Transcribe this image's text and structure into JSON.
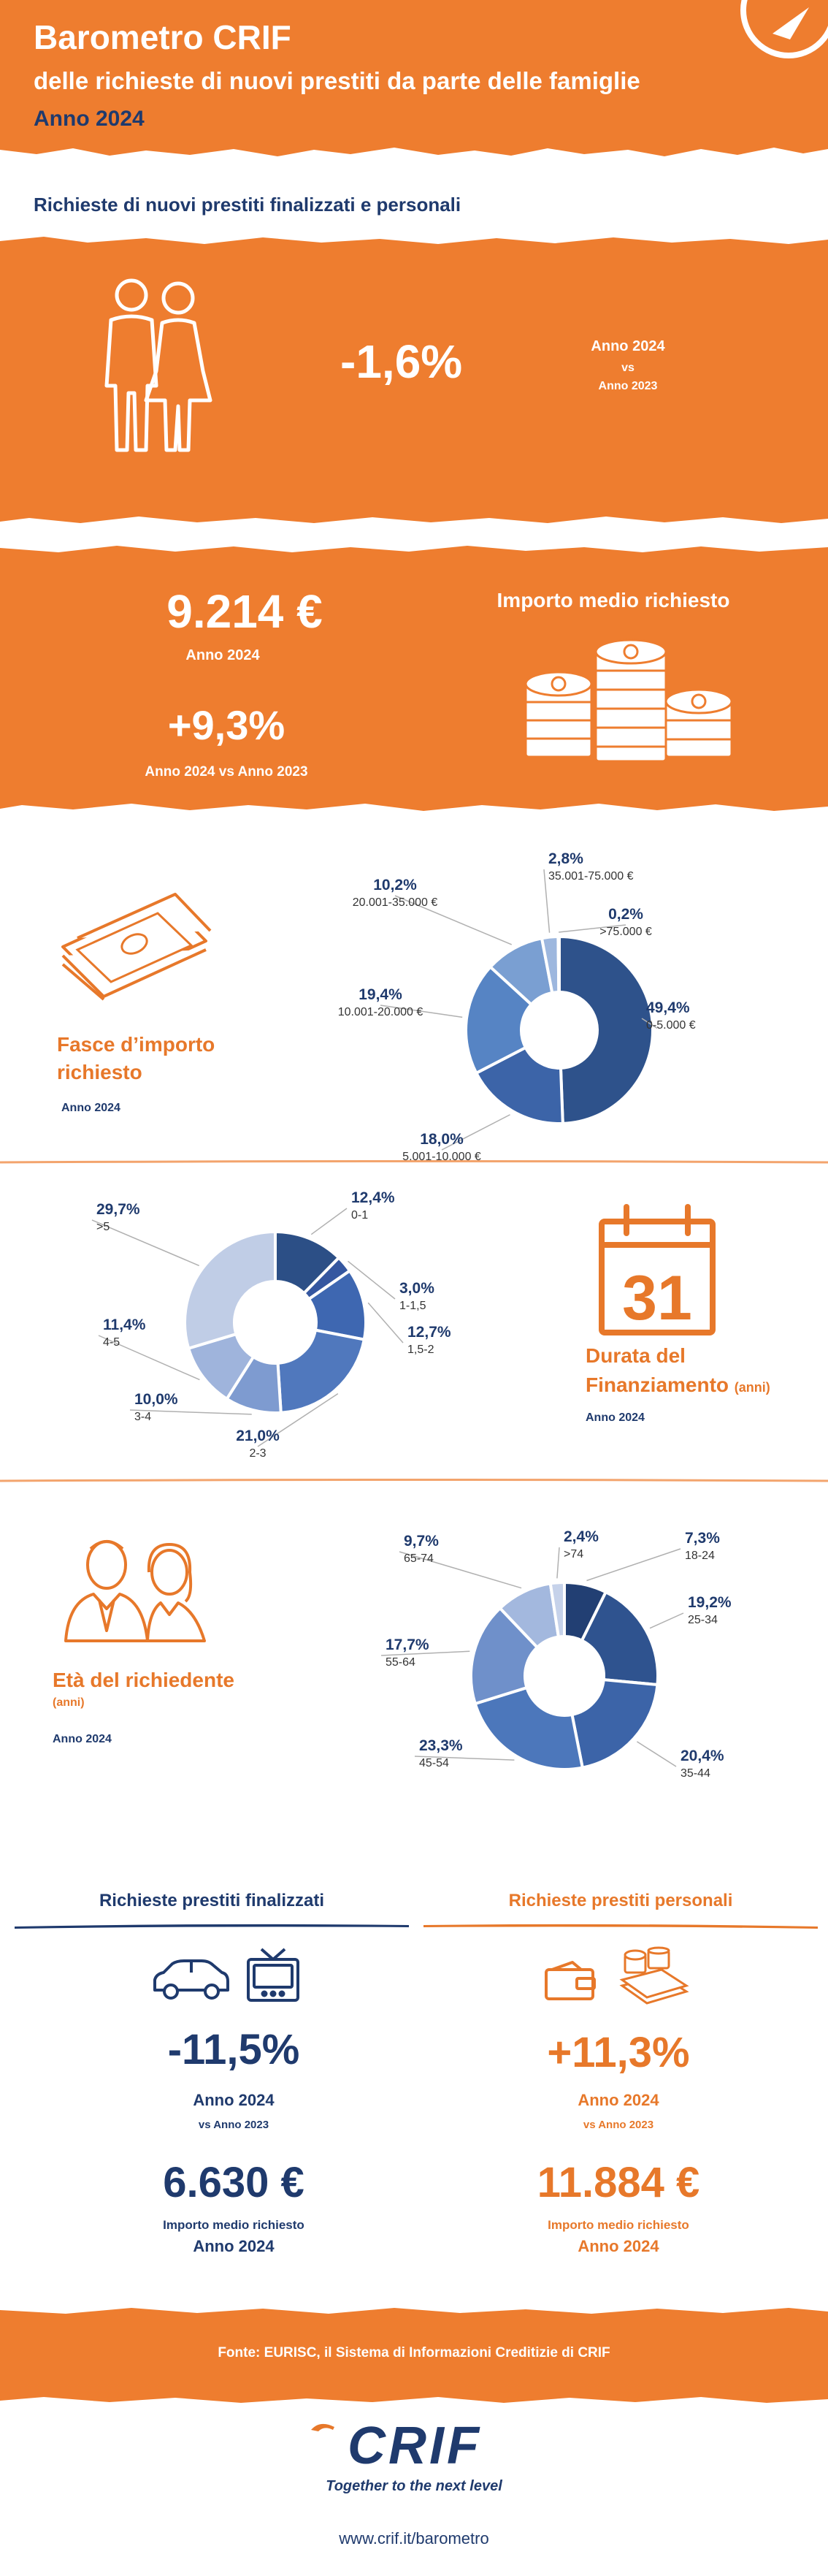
{
  "header": {
    "title": "Barometro CRIF",
    "subtitle": "delle richieste di nuovi prestiti da parte delle famiglie",
    "year": "Anno 2024"
  },
  "section1": {
    "heading": "Richieste di nuovi prestiti finalizzati e personali",
    "change": "-1,6%",
    "compare_a": "Anno 2024",
    "compare_vs": "vs",
    "compare_b": "Anno 2023"
  },
  "section2": {
    "amount": "9.214 €",
    "amount_year": "Anno 2024",
    "change": "+9,3%",
    "change_label": "Anno 2024 vs Anno 2023",
    "title": "Importo medio richiesto"
  },
  "importo": {
    "title_line1": "Fasce d’importo",
    "title_line2": "richiesto",
    "year": "Anno 2024"
  },
  "durata": {
    "title_line1": "Durata del",
    "title_line2": "Finanziamento",
    "unit": "(anni)",
    "year": "Anno 2024",
    "calendar_day": "31"
  },
  "eta": {
    "title": "Età del richiedente",
    "unit": "(anni)",
    "year": "Anno 2024"
  },
  "chart_data": [
    {
      "type": "pie",
      "donut": true,
      "title": "Fasce d’importo richiesto",
      "slices": [
        {
          "label": "0-5.000 €",
          "value": 49.4,
          "text": "49,4%",
          "color": "#2e528b"
        },
        {
          "label": "5.001-10.000 €",
          "value": 18.0,
          "text": "18,0%",
          "color": "#3c64a8"
        },
        {
          "label": "10.001-20.000 €",
          "value": 19.4,
          "text": "19,4%",
          "color": "#5684c4"
        },
        {
          "label": "20.001-35.000 €",
          "value": 10.2,
          "text": "10,2%",
          "color": "#7a9fd2"
        },
        {
          "label": "35.001-75.000 €",
          "value": 2.8,
          "text": "2,8%",
          "color": "#9db7de"
        },
        {
          "label": ">75.000 €",
          "value": 0.2,
          "text": "0,2%",
          "color": "#bccde9"
        }
      ]
    },
    {
      "type": "pie",
      "donut": true,
      "title": "Durata del Finanziamento (anni)",
      "slices": [
        {
          "label": "0-1",
          "value": 12.4,
          "text": "12,4%",
          "color": "#2c4f86"
        },
        {
          "label": "1-1,5",
          "value": 3.0,
          "text": "3,0%",
          "color": "#3557a0"
        },
        {
          "label": "1,5-2",
          "value": 12.7,
          "text": "12,7%",
          "color": "#3e67b1"
        },
        {
          "label": "2-3",
          "value": 21.0,
          "text": "21,0%",
          "color": "#5078bd"
        },
        {
          "label": "3-4",
          "value": 10.0,
          "text": "10,0%",
          "color": "#7e9bd0"
        },
        {
          "label": "4-5",
          "value": 11.4,
          "text": "11,4%",
          "color": "#9fb4dc"
        },
        {
          "label": ">5",
          "value": 29.7,
          "text": "29,7%",
          "color": "#c0cde6"
        }
      ]
    },
    {
      "type": "pie",
      "donut": true,
      "title": "Età del richiedente (anni)",
      "slices": [
        {
          "label": "18-24",
          "value": 7.3,
          "text": "7,3%",
          "color": "#223f73"
        },
        {
          "label": "25-34",
          "value": 19.2,
          "text": "19,2%",
          "color": "#2f538f"
        },
        {
          "label": "35-44",
          "value": 20.4,
          "text": "20,4%",
          "color": "#3c64a8"
        },
        {
          "label": "45-54",
          "value": 23.3,
          "text": "23,3%",
          "color": "#4c77bb"
        },
        {
          "label": "55-64",
          "value": 17.7,
          "text": "17,7%",
          "color": "#6f90ca"
        },
        {
          "label": "65-74",
          "value": 9.7,
          "text": "9,7%",
          "color": "#a3b8de"
        },
        {
          "label": ">74",
          "value": 2.4,
          "text": "2,4%",
          "color": "#c6d2ea"
        }
      ]
    }
  ],
  "finalizzati": {
    "heading": "Richieste prestiti finalizzati",
    "change": "-11,5%",
    "change_year": "Anno 2024",
    "change_vs": "vs Anno 2023",
    "amount": "6.630 €",
    "amount_label": "Importo medio richiesto",
    "amount_year": "Anno 2024",
    "color": "#1f3a6d"
  },
  "personali": {
    "heading": "Richieste prestiti personali",
    "change": "+11,3%",
    "change_year": "Anno 2024",
    "change_vs": "vs Anno 2023",
    "amount": "11.884 €",
    "amount_label": "Importo medio richiesto",
    "amount_year": "Anno 2024",
    "color": "#e7782a"
  },
  "footer": {
    "source": "Fonte: EURISC, il Sistema di Informazioni Creditizie di CRIF",
    "logo": "CRIF",
    "tagline": "Together to the next level",
    "url": "www.crif.it/barometro"
  },
  "icons": [
    "couple-icon",
    "coins-icon",
    "banknotes-icon",
    "calendar-icon",
    "people-icon",
    "car-icon",
    "tv-icon",
    "wallet-icon",
    "compass-icon"
  ]
}
